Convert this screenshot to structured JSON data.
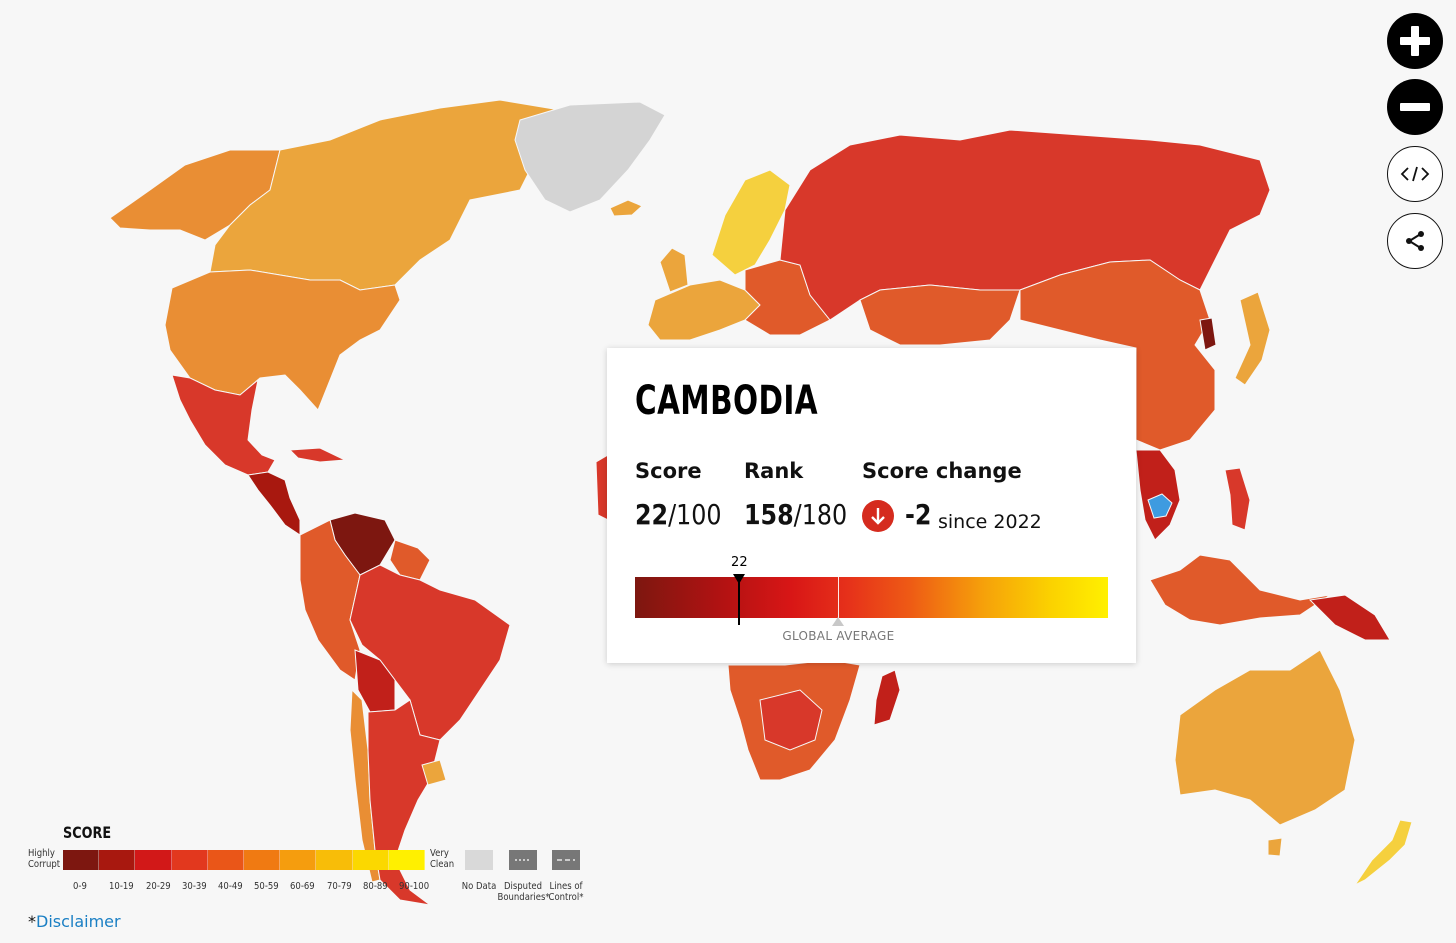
{
  "map": {
    "colors": {
      "ocean": "#f7f7f7",
      "no_data": "#d4d4d4",
      "selected": "#3e9be0",
      "b0_9": "#7d1710",
      "b10_19": "#a8180f",
      "b20_29": "#c1201a",
      "b30_39": "#d8382a",
      "b40_49": "#e05a2a",
      "b50_59": "#e98e34",
      "b60_69": "#eba53c",
      "b70_79": "#f0b83e",
      "b80_89": "#f5d03e",
      "b90_100": "#fbe24a"
    }
  },
  "controls": {
    "zoom_in_icon": "plus-icon",
    "zoom_out_icon": "minus-icon",
    "embed_icon": "code-icon",
    "share_icon": "share-icon"
  },
  "card": {
    "country": "CAMBODIA",
    "score_label": "Score",
    "score_value": "22",
    "score_max": "/100",
    "rank_label": "Rank",
    "rank_value": "158",
    "rank_max": "/180",
    "change_label": "Score change",
    "change_value": "-2",
    "change_since": "since 2022",
    "change_icon": "arrow-down-icon",
    "marker_value": "22",
    "global_average_label": "GLOBAL AVERAGE",
    "scale_score": 22,
    "global_average_score": 43
  },
  "legend": {
    "title": "SCORE",
    "low_label": "Highly\nCorrupt",
    "high_label": "Very\nClean",
    "ticks": [
      "0-9",
      "10-19",
      "20-29",
      "30-39",
      "40-49",
      "50-59",
      "60-69",
      "70-79",
      "80-89",
      "90-100"
    ],
    "bar_colors": [
      "#7d1710",
      "#a8180f",
      "#d21818",
      "#e2381e",
      "#ea5618",
      "#f07a12",
      "#f59d0e",
      "#f8bd08",
      "#fbd800",
      "#fff000"
    ],
    "no_data_label": "No Data",
    "disputed_label": "Disputed\nBoundaries*",
    "lines_label": "Lines of\nControl*"
  },
  "footer": {
    "star": "*",
    "disclaimer": "Disclaimer"
  }
}
